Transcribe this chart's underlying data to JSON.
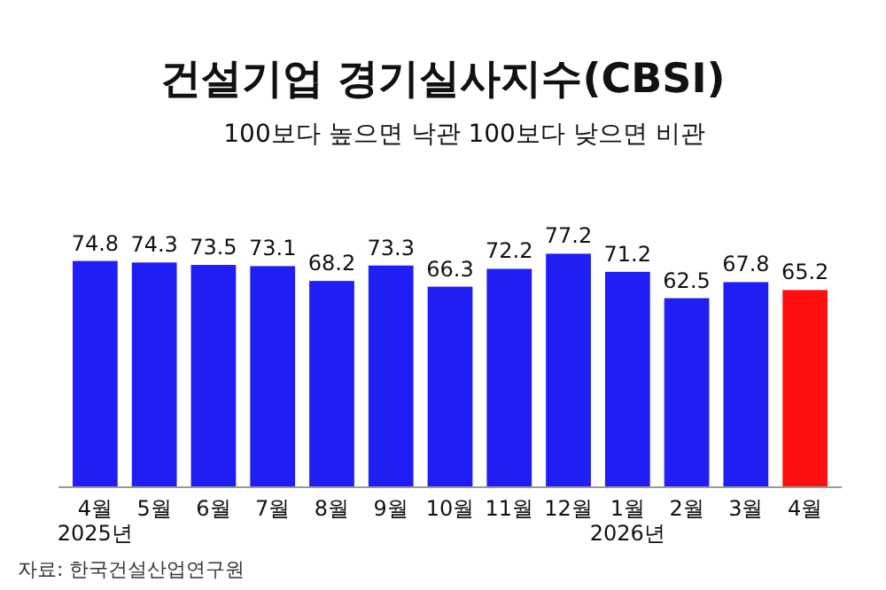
{
  "chart_data": {
    "type": "bar",
    "title": "건설기업 경기실사지수(CBSI)",
    "subtitle": "100보다 높으면 낙관 100보다 낮으면 비관",
    "categories": [
      "4월\n2025년",
      "5월",
      "6월",
      "7월",
      "8월",
      "9월",
      "10월",
      "11월",
      "12월",
      "1월\n2026년",
      "2월",
      "3월",
      "4월"
    ],
    "values": [
      74.8,
      74.3,
      73.5,
      73.1,
      68.2,
      73.3,
      66.3,
      72.2,
      77.2,
      71.2,
      62.5,
      67.8,
      65.2
    ],
    "colors": [
      "#1f1ff5",
      "#1f1ff5",
      "#1f1ff5",
      "#1f1ff5",
      "#1f1ff5",
      "#1f1ff5",
      "#1f1ff5",
      "#1f1ff5",
      "#1f1ff5",
      "#1f1ff5",
      "#1f1ff5",
      "#1f1ff5",
      "#ff1010"
    ],
    "data_labels": true,
    "annotations": [
      "자료: 한국건설산업연구원"
    ]
  }
}
